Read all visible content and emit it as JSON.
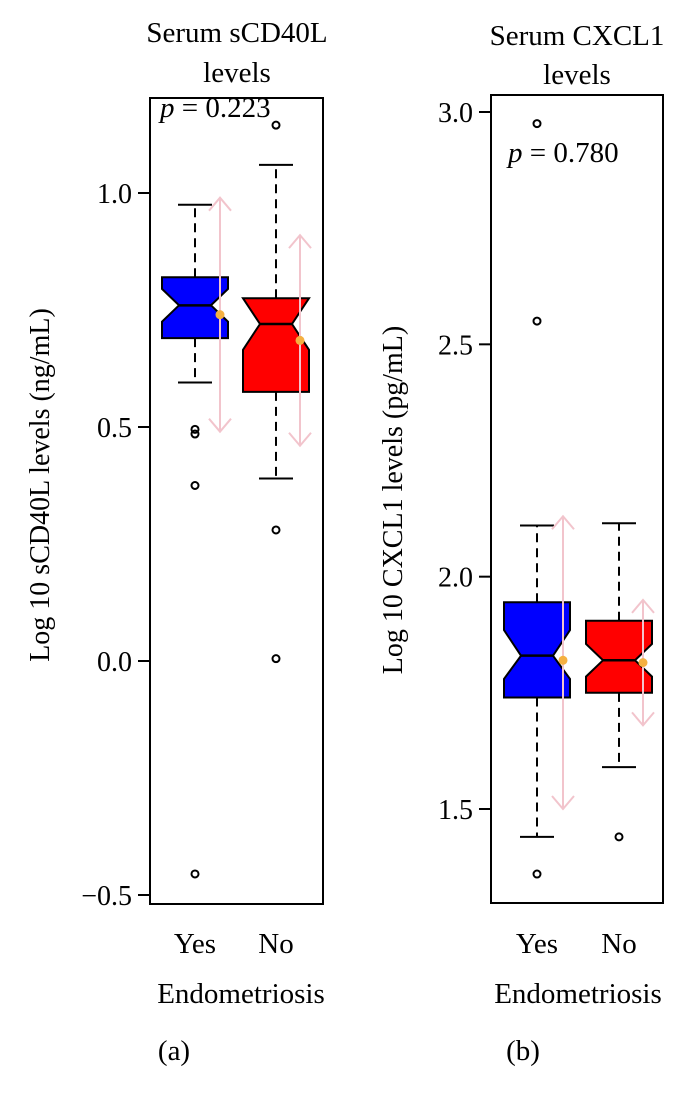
{
  "chart_data": [
    {
      "type": "box",
      "title": "Serum sCD40L levels",
      "title_lines": [
        "Serum sCD40L",
        "levels"
      ],
      "annotation": "p = 0.223",
      "annotation_p": "p",
      "annotation_rest": " = 0.223",
      "ylabel": "Log 10 sCD40L levels (ng/mL)",
      "xlabel": "Endometriosis",
      "panel_label": "(a)",
      "ylim": [
        -0.52,
        1.2
      ],
      "yticks": [
        -0.5,
        0.0,
        0.5,
        1.0
      ],
      "ytick_labels": [
        "−0.5",
        "0.0",
        "0.5",
        "1.0"
      ],
      "categories": [
        "Yes",
        "No"
      ],
      "boxes": [
        {
          "name": "Yes",
          "color": "#0000ff",
          "whisker_low": 0.595,
          "q1": 0.69,
          "median": 0.76,
          "q3": 0.82,
          "whisker_high": 0.975,
          "notch_low": 0.725,
          "notch_high": 0.795,
          "outliers": [
            0.495,
            0.485,
            0.375,
            -0.455
          ],
          "mean": 0.74,
          "sd_low": 0.49,
          "sd_high": 0.99
        },
        {
          "name": "No",
          "color": "#ff0000",
          "whisker_low": 0.39,
          "q1": 0.575,
          "median": 0.72,
          "q3": 0.775,
          "whisker_high": 1.06,
          "notch_low": 0.665,
          "notch_high": 0.775,
          "outliers": [
            1.145,
            0.28,
            0.005
          ],
          "mean": 0.685,
          "sd_low": 0.46,
          "sd_high": 0.91
        }
      ]
    },
    {
      "type": "box",
      "title": "Serum CXCL1 levels",
      "title_lines": [
        "Serum CXCL1",
        "levels"
      ],
      "annotation": "p = 0.780",
      "annotation_p": "p",
      "annotation_rest": " = 0.780",
      "ylabel": "Log 10 CXCL1 levels (pg/mL)",
      "xlabel": "Endometriosis",
      "panel_label": "(b)",
      "ylim": [
        1.3,
        3.04
      ],
      "yticks": [
        1.5,
        2.0,
        2.5,
        3.0
      ],
      "ytick_labels": [
        "1.5",
        "2.0",
        "2.5",
        "3.0"
      ],
      "categories": [
        "Yes",
        "No"
      ],
      "boxes": [
        {
          "name": "Yes",
          "color": "#0000ff",
          "whisker_low": 1.44,
          "q1": 1.74,
          "median": 1.83,
          "q3": 1.945,
          "whisker_high": 2.11,
          "notch_low": 1.78,
          "notch_high": 1.885,
          "outliers": [
            2.975,
            2.55,
            1.36
          ],
          "mean": 1.82,
          "sd_low": 1.5,
          "sd_high": 2.13
        },
        {
          "name": "No",
          "color": "#ff0000",
          "whisker_low": 1.59,
          "q1": 1.75,
          "median": 1.82,
          "q3": 1.905,
          "whisker_high": 2.115,
          "notch_low": 1.785,
          "notch_high": 1.855,
          "outliers": [
            1.44
          ],
          "mean": 1.815,
          "sd_low": 1.68,
          "sd_high": 1.95
        }
      ]
    }
  ],
  "colors": {
    "sd_arrow": "#f2c4cc",
    "mean_point": "#f5b041"
  }
}
